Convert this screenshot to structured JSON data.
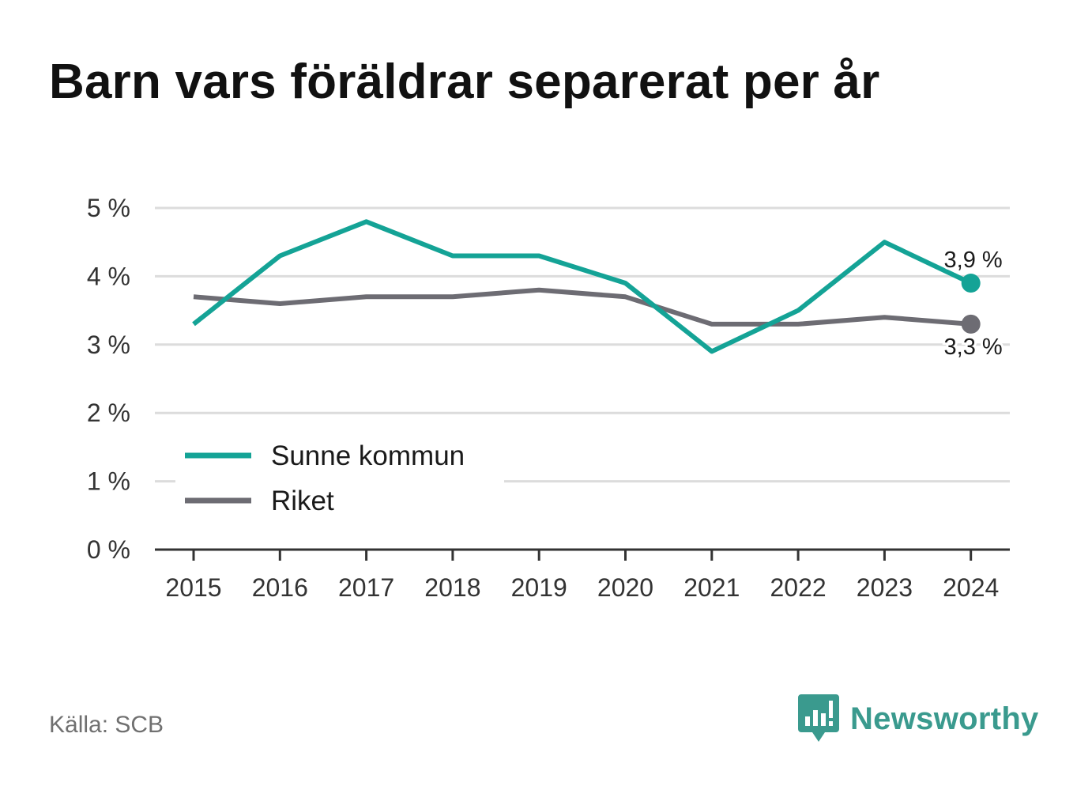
{
  "title": "Barn vars föräldrar separerat per år",
  "source": "Källa: SCB",
  "brand": {
    "name": "Newsworthy",
    "icon": "newsworthy-logo-icon"
  },
  "colors": {
    "series_primary": "#14a396",
    "series_secondary": "#6d6c73",
    "grid": "#dcdcdc",
    "axis": "#333333",
    "brand": "#3a9a8e"
  },
  "chart_data": {
    "type": "line",
    "title": "Barn vars föräldrar separerat per år",
    "x": [
      "2015",
      "2016",
      "2017",
      "2018",
      "2019",
      "2020",
      "2021",
      "2022",
      "2023",
      "2024"
    ],
    "y_ticks": [
      "0 %",
      "1 %",
      "2 %",
      "3 %",
      "4 %",
      "5 %"
    ],
    "ylim": [
      0,
      5
    ],
    "grid": true,
    "legend_position": "bottom-left",
    "series": [
      {
        "name": "Sunne kommun",
        "color": "#14a396",
        "values": [
          3.3,
          4.3,
          4.8,
          4.3,
          4.3,
          3.9,
          2.9,
          3.5,
          4.5,
          3.9
        ],
        "end_label": "3,9 %"
      },
      {
        "name": "Riket",
        "color": "#6d6c73",
        "values": [
          3.7,
          3.6,
          3.7,
          3.7,
          3.8,
          3.7,
          3.3,
          3.3,
          3.4,
          3.3
        ],
        "end_label": "3,3 %"
      }
    ]
  }
}
